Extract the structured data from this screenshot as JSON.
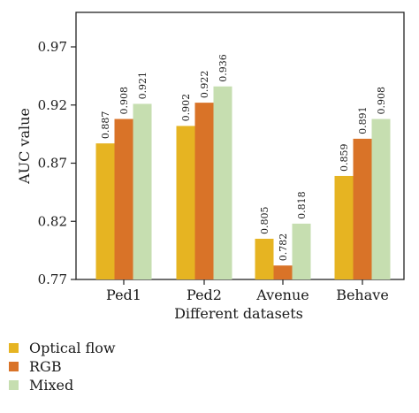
{
  "chart_data": {
    "type": "bar",
    "title": "",
    "xlabel": "Different datasets",
    "ylabel": "AUC value",
    "ylim": [
      0.77,
      1.0
    ],
    "yticks": [
      "0.77",
      "0.82",
      "0.87",
      "0.92",
      "0.97"
    ],
    "categories": [
      "Ped1",
      "Ped2",
      "Avenue",
      "Behave"
    ],
    "series": [
      {
        "name": "Optical flow",
        "color": "#E6B422",
        "values": [
          0.887,
          0.902,
          0.805,
          0.859
        ],
        "labels": [
          "0.887",
          "0.902",
          "0.805",
          "0.859"
        ]
      },
      {
        "name": "RGB",
        "color": "#D97328",
        "values": [
          0.908,
          0.922,
          0.782,
          0.891
        ],
        "labels": [
          "0.908",
          "0.922",
          "0.782",
          "0.891"
        ]
      },
      {
        "name": "Mixed",
        "color": "#C6DEB0",
        "values": [
          0.921,
          0.936,
          0.818,
          0.908
        ],
        "labels": [
          "0.921",
          "0.936",
          "0.818",
          "0.908"
        ]
      }
    ],
    "grid": false,
    "legend_position": "bottom-left"
  }
}
